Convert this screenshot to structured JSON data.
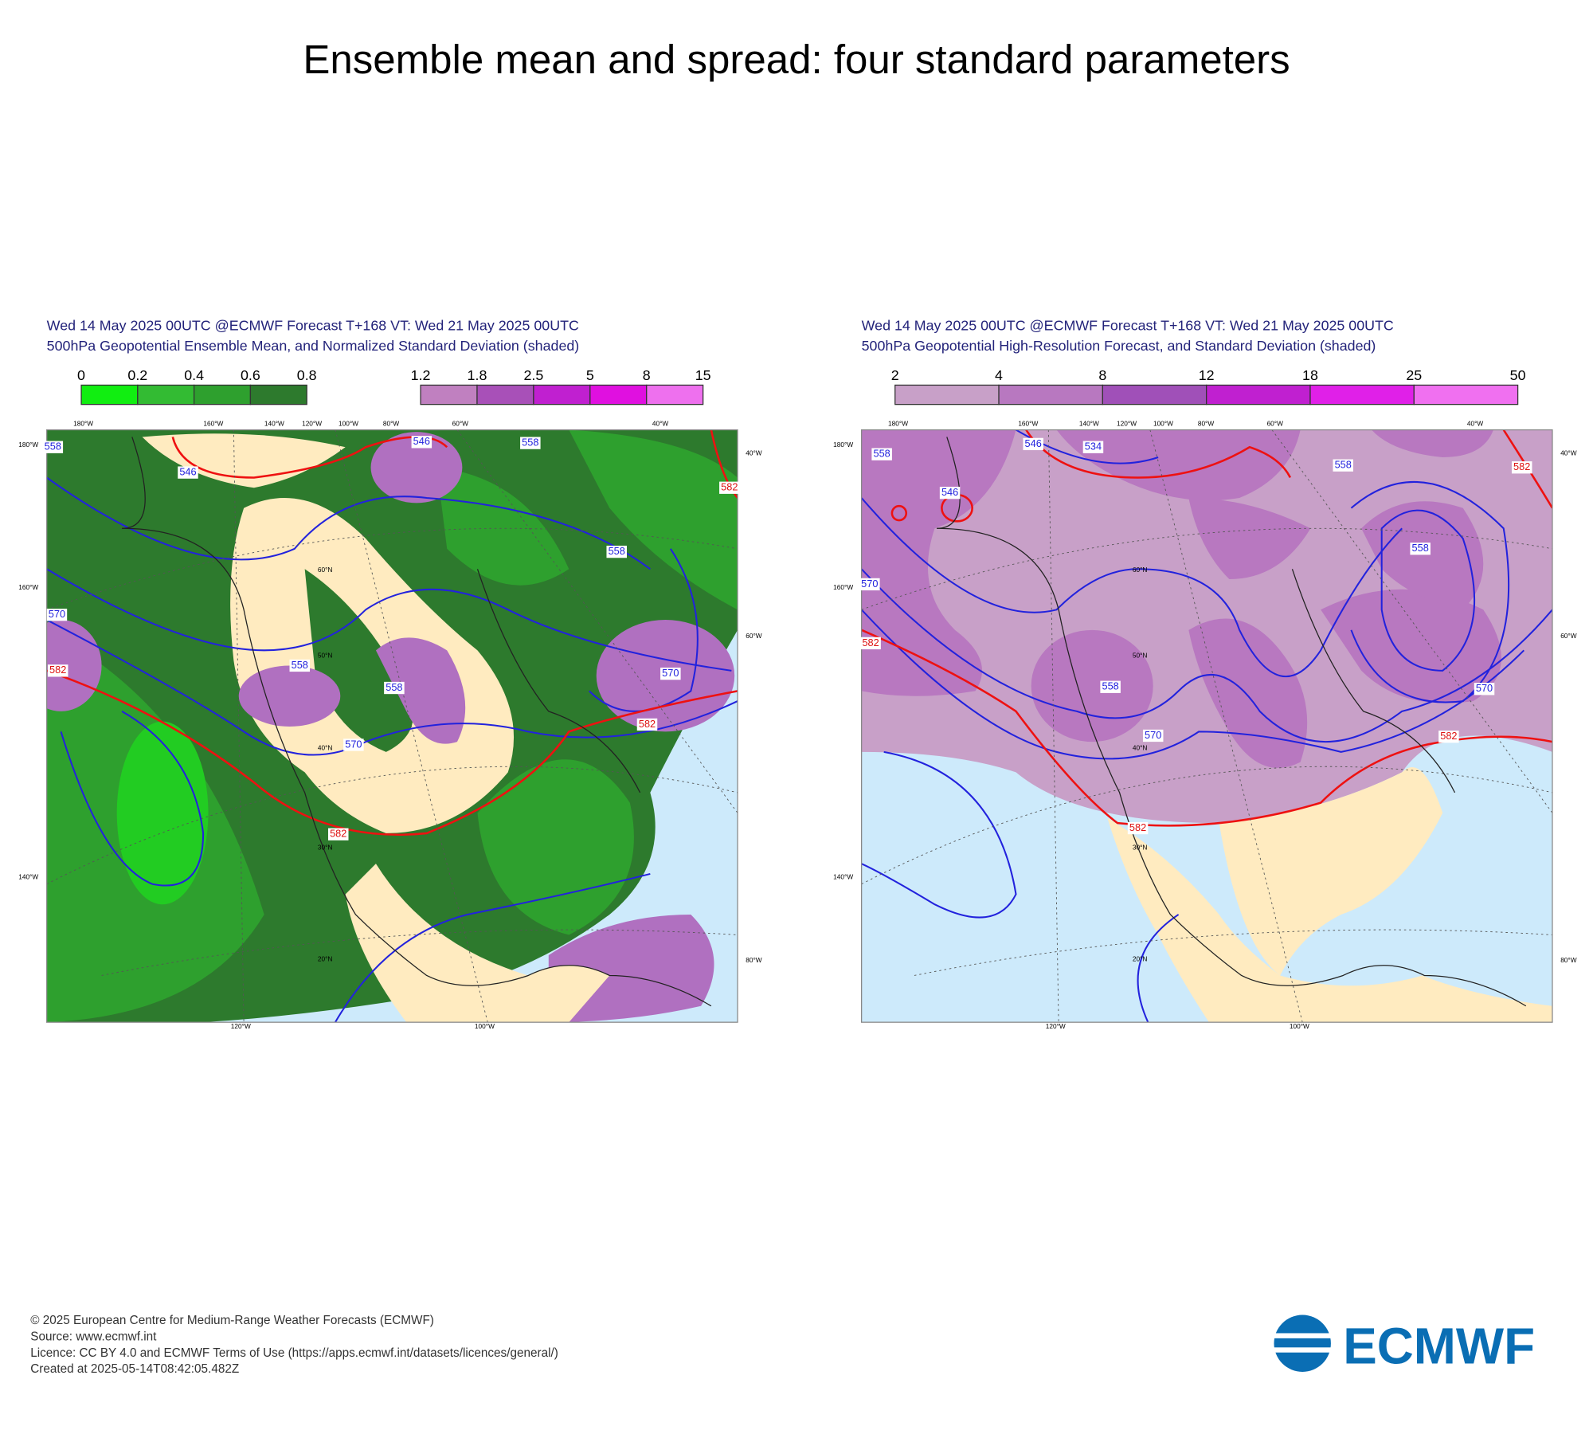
{
  "title": "Ensemble mean and spread: four standard parameters",
  "panels": [
    {
      "header": [
        "Wed 14 May 2025 00UTC @ECMWF Forecast T+168 VT: Wed 21 May 2025 00UTC",
        "500hPa Geopotential Ensemble Mean, and Normalized Standard Deviation (shaded)"
      ],
      "colorbars": [
        [
          0,
          0.2,
          0.4,
          0.6,
          0.8
        ],
        [
          1.2,
          1.8,
          2.5,
          5,
          8,
          15
        ]
      ],
      "colorbar_colors": [
        [
          "#11ee11",
          "#33bb33",
          "#2ea02e",
          "#2d7a2d"
        ],
        [
          "#c080c0",
          "#a850b8",
          "#c020d0",
          "#e010e0",
          "#ee70ee"
        ]
      ],
      "contour_labels": [
        "546",
        "546",
        "558",
        "558",
        "582",
        "558",
        "570",
        "582",
        "558",
        "558",
        "570",
        "570",
        "582",
        "582"
      ],
      "map_labels": [
        "180°W",
        "160°W",
        "140°W",
        "120°W",
        "100°W",
        "80°W",
        "60°W",
        "40°W",
        "180°W",
        "160°W",
        "140°W",
        "40°W",
        "60°W",
        "80°W",
        "120°W",
        "100°W",
        "60°N",
        "50°N",
        "40°N",
        "30°N",
        "20°N"
      ]
    },
    {
      "header": [
        "Wed 14 May 2025 00UTC @ECMWF Forecast T+168 VT: Wed 21 May 2025 00UTC",
        "500hPa Geopotential High-Resolution Forecast, and Standard Deviation (shaded)"
      ],
      "colorbars": [
        [
          2,
          4,
          8,
          12,
          18,
          25,
          50
        ]
      ],
      "colorbar_colors": [
        [
          "#c8a0c8",
          "#b878c0",
          "#a050b8",
          "#c020d0",
          "#e020e8",
          "#f070f0"
        ]
      ],
      "contour_labels": [
        "558",
        "546",
        "534",
        "558",
        "582",
        "546",
        "570",
        "582",
        "558",
        "558",
        "570",
        "570",
        "582",
        "582"
      ],
      "map_labels": [
        "180°W",
        "160°W",
        "140°W",
        "120°W",
        "100°W",
        "80°W",
        "60°W",
        "40°W",
        "180°W",
        "160°W",
        "140°W",
        "40°W",
        "60°W",
        "80°W",
        "120°W",
        "100°W",
        "60°N",
        "50°N",
        "40°N",
        "30°N",
        "20°N"
      ]
    }
  ],
  "footer": [
    "© 2025 European Centre for Medium-Range Weather Forecasts (ECMWF)",
    "Source: www.ecmwf.int",
    "Licence: CC BY 4.0 and ECMWF Terms of Use (https://apps.ecmwf.int/datasets/licences/general/)",
    "Created at 2025-05-14T08:42:05.482Z"
  ],
  "logo": "ECMWF"
}
